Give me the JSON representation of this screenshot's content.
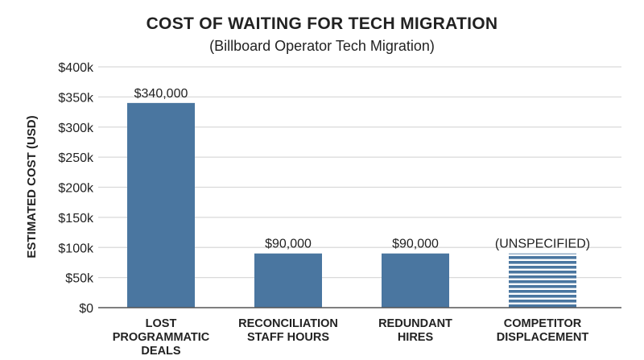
{
  "chart_data": {
    "type": "bar",
    "title": "COST OF WAITING FOR TECH MIGRATION",
    "subtitle": "(Billboard Operator Tech Migration)",
    "xlabel": "",
    "ylabel": "ESTIMATED COST (USD)",
    "ylim": [
      0,
      400000
    ],
    "yticks": [
      0,
      50000,
      100000,
      150000,
      200000,
      250000,
      300000,
      350000,
      400000
    ],
    "ytick_labels": [
      "$0",
      "$50k",
      "$100k",
      "$150k",
      "$200k",
      "$250k",
      "$300k",
      "$350k",
      "$400k"
    ],
    "grid": true,
    "categories": [
      [
        "LOST",
        "PROGRAMMATIC",
        "DEALS"
      ],
      [
        "RECONCILIATION",
        "STAFF HOURS"
      ],
      [
        "REDUNDANT",
        "HIRES"
      ],
      [
        "COMPETITOR",
        "DISPLACEMENT"
      ]
    ],
    "values": [
      340000,
      90000,
      90000,
      null
    ],
    "display_value": [
      340000,
      90000,
      90000,
      90000
    ],
    "data_labels": [
      "$340,000",
      "$90,000",
      "$90,000",
      "(UNSPECIFIED)"
    ],
    "hatched": [
      false,
      false,
      false,
      true
    ],
    "colors": {
      "bar": "#4a76a0",
      "grid": "#d9d9d9",
      "axis": "#555555",
      "text": "#222222"
    }
  }
}
